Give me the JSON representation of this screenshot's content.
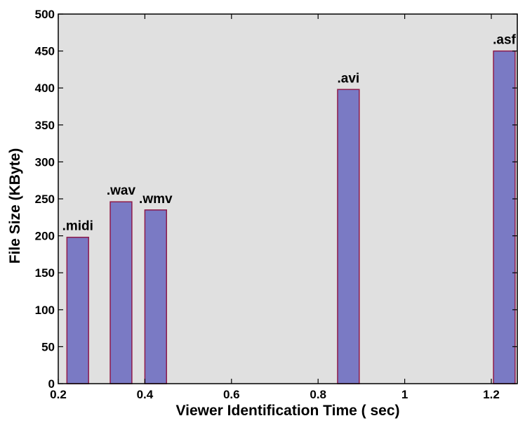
{
  "chart_data": {
    "type": "bar",
    "xlabel": "Viewer Identification Time ( sec)",
    "ylabel": "File Size (KByte)",
    "xlim": [
      0.2,
      1.26
    ],
    "ylim": [
      0,
      500
    ],
    "bar_width": 0.05,
    "grid": false,
    "legend": "none",
    "bars": [
      {
        "x": 0.245,
        "value": 198,
        "label": ".midi"
      },
      {
        "x": 0.345,
        "value": 246,
        "label": ".wav"
      },
      {
        "x": 0.425,
        "value": 235,
        "label": ".wmv"
      },
      {
        "x": 0.87,
        "value": 398,
        "label": ".avi"
      },
      {
        "x": 1.23,
        "value": 450,
        "label": ".asf"
      }
    ],
    "x_ticks": [
      {
        "value": 0.2,
        "label": "0.2"
      },
      {
        "value": 0.4,
        "label": "0.4"
      },
      {
        "value": 0.6,
        "label": "0.6"
      },
      {
        "value": 0.8,
        "label": "0.8"
      },
      {
        "value": 1.0,
        "label": "1"
      },
      {
        "value": 1.2,
        "label": "1.2"
      }
    ],
    "y_ticks": [
      {
        "value": 0,
        "label": "0"
      },
      {
        "value": 50,
        "label": "50"
      },
      {
        "value": 100,
        "label": "100"
      },
      {
        "value": 150,
        "label": "150"
      },
      {
        "value": 200,
        "label": "200"
      },
      {
        "value": 250,
        "label": "250"
      },
      {
        "value": 300,
        "label": "300"
      },
      {
        "value": 350,
        "label": "350"
      },
      {
        "value": 400,
        "label": "400"
      },
      {
        "value": 450,
        "label": "450"
      },
      {
        "value": 500,
        "label": "500"
      }
    ],
    "colors": {
      "plot_background": "#e0e0e0",
      "bar_fill": "#7a7ac4",
      "bar_edge": "#8e1a4a",
      "axis": "#000000"
    }
  }
}
